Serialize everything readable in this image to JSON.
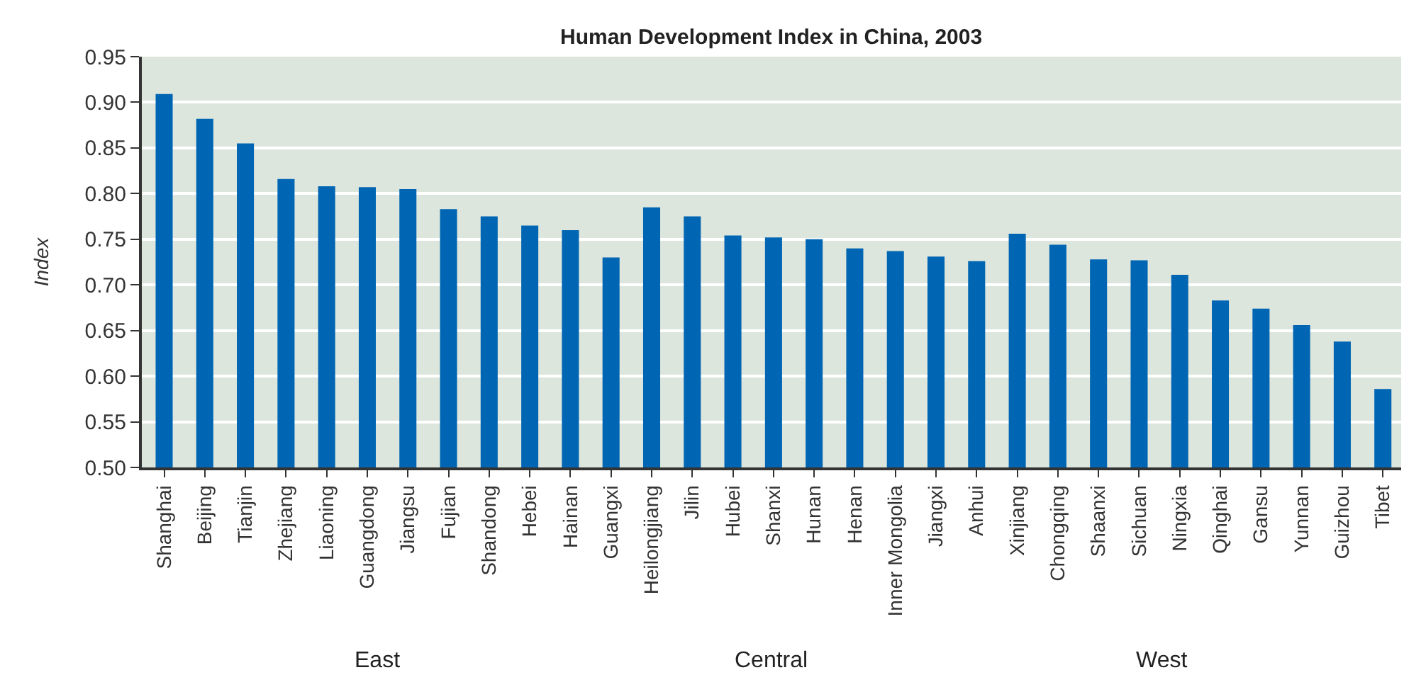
{
  "chart_data": {
    "type": "bar",
    "title": "Human Development Index in China, 2003",
    "ylabel": "Index",
    "categories": [
      "Shanghai",
      "Beijing",
      "Tianjin",
      "Zhejiang",
      "Liaoning",
      "Guangdong",
      "Jiangsu",
      "Fujian",
      "Shandong",
      "Hebei",
      "Hainan",
      "Guangxi",
      "Heilongjiang",
      "Jilin",
      "Hubei",
      "Shanxi",
      "Hunan",
      "Henan",
      "Inner Mongolia",
      "Jiangxi",
      "Anhui",
      "Xinjiang",
      "Chongqing",
      "Shaanxi",
      "Sichuan",
      "Ningxia",
      "Qinghai",
      "Gansu",
      "Yunnan",
      "Guizhou",
      "Tibet"
    ],
    "values": [
      0.909,
      0.882,
      0.855,
      0.816,
      0.808,
      0.807,
      0.805,
      0.783,
      0.775,
      0.765,
      0.76,
      0.73,
      0.785,
      0.775,
      0.754,
      0.752,
      0.75,
      0.74,
      0.737,
      0.731,
      0.726,
      0.756,
      0.744,
      0.728,
      0.727,
      0.711,
      0.683,
      0.674,
      0.656,
      0.638,
      0.586
    ],
    "color": "#0066b3",
    "ylim": [
      0.5,
      0.95
    ],
    "yticks": [
      {
        "value": 0.5,
        "label": "0.50"
      },
      {
        "value": 0.55,
        "label": "0.55"
      },
      {
        "value": 0.6,
        "label": "0.60"
      },
      {
        "value": 0.65,
        "label": "0.65"
      },
      {
        "value": 0.7,
        "label": "0.70"
      },
      {
        "value": 0.75,
        "label": "0.75"
      },
      {
        "value": 0.8,
        "label": "0.80"
      },
      {
        "value": 0.85,
        "label": "0.85"
      },
      {
        "value": 0.9,
        "label": "0.90"
      },
      {
        "value": 0.95,
        "label": "0.95"
      }
    ],
    "grid": "y",
    "annotations": [
      "East",
      "Central",
      "West"
    ]
  }
}
